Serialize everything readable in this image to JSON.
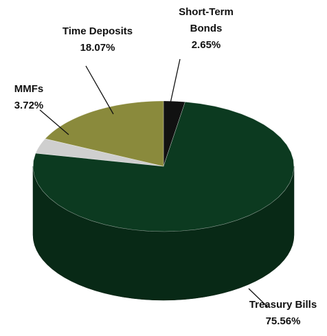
{
  "chart_data": {
    "type": "pie3d",
    "categories": [
      "Short-Term Bonds",
      "Treasury Bills",
      "MMFs",
      "Time Deposits"
    ],
    "values": [
      2.65,
      75.56,
      3.72,
      18.07
    ],
    "value_labels": [
      "2.65%",
      "75.56%",
      "3.72%",
      "18.07%"
    ],
    "colors": [
      "#111111",
      "#0c3a20",
      "#cfcfcf",
      "#8a8a3c"
    ]
  }
}
